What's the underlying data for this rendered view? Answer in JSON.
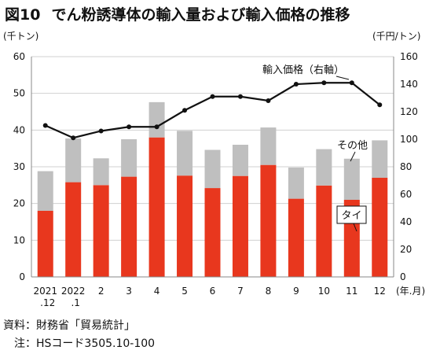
{
  "figure": {
    "number": "図10",
    "title": "でん粉誘導体の輸入量および輸入価格の推移"
  },
  "chart_data": {
    "type": "bar",
    "stacked": true,
    "categories": [
      {
        "line1": "2021",
        "line2": ".12"
      },
      {
        "line1": "2022",
        "line2": ".1"
      },
      {
        "line1": "2",
        "line2": ""
      },
      {
        "line1": "3",
        "line2": ""
      },
      {
        "line1": "4",
        "line2": ""
      },
      {
        "line1": "5",
        "line2": ""
      },
      {
        "line1": "6",
        "line2": ""
      },
      {
        "line1": "7",
        "line2": ""
      },
      {
        "line1": "8",
        "line2": ""
      },
      {
        "line1": "9",
        "line2": ""
      },
      {
        "line1": "10",
        "line2": ""
      },
      {
        "line1": "11",
        "line2": ""
      },
      {
        "line1": "12",
        "line2": ""
      }
    ],
    "x_unit": "(年.月)",
    "left_axis": {
      "unit": "(千トン)",
      "ylim": [
        0,
        60
      ],
      "ticks": [
        0,
        10,
        20,
        30,
        40,
        50,
        60
      ]
    },
    "right_axis": {
      "unit": "(千円/トン)",
      "ylim": [
        0,
        160
      ],
      "ticks": [
        0,
        20,
        40,
        60,
        80,
        100,
        120,
        140,
        160
      ]
    },
    "series": [
      {
        "name": "タイ",
        "kind": "bar",
        "axis": "left",
        "color": "#e8371e",
        "values": [
          18.0,
          25.8,
          25.0,
          27.3,
          38.0,
          27.6,
          24.2,
          27.5,
          30.5,
          21.3,
          24.9,
          21.0,
          27.0
        ]
      },
      {
        "name": "その他",
        "kind": "bar",
        "axis": "left",
        "color": "#bfbfbf",
        "values": [
          10.8,
          11.9,
          7.3,
          10.2,
          9.6,
          12.2,
          10.4,
          8.5,
          10.2,
          8.5,
          9.9,
          11.2,
          10.2
        ]
      },
      {
        "name": "輸入価格（右軸）",
        "kind": "line",
        "axis": "right",
        "color": "#111111",
        "values": [
          110,
          101,
          106,
          109,
          109,
          121,
          131,
          131,
          128,
          140,
          141,
          141,
          125
        ]
      }
    ],
    "grid": true
  },
  "notes": {
    "source": "資料：財務省「貿易統計」",
    "note": "注：HSコード3505.10-100"
  }
}
